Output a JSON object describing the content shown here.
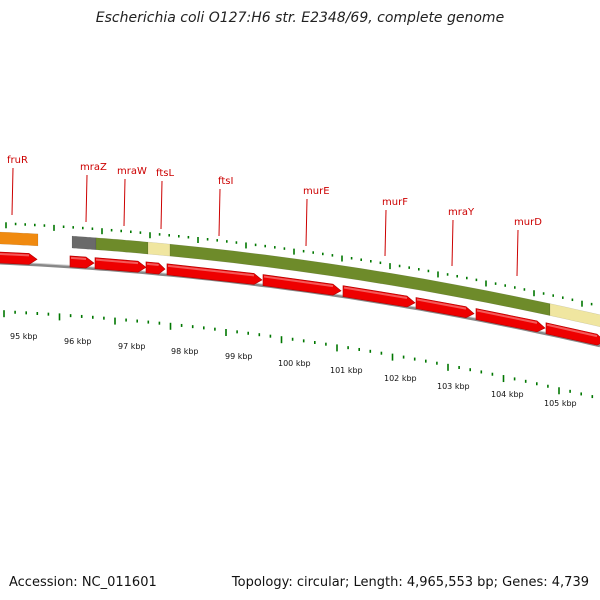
{
  "title": "Escherichia coli O127:H6 str. E2348/69, complete genome",
  "footer": {
    "accession": "Accession: NC_011601",
    "topology": "Topology: circular; Length: 4,965,553 bp; Genes: 4,739"
  },
  "colors": {
    "gene_label": "#cc0000",
    "cds_arrow": "#ee0000",
    "tick_marks": "#007700",
    "backbone": "#888888",
    "category_orange": "#f08a10",
    "category_dark_grey": "#6a6a6a",
    "category_olive": "#6e8b2a",
    "category_pale_yellow": "#f0e6a0"
  },
  "gene_labels": [
    "fruR",
    "mraZ",
    "mraW",
    "ftsL",
    "ftsI",
    "murE",
    "murF",
    "mraY",
    "murD"
  ],
  "scale_labels": [
    "95 kbp",
    "96 kbp",
    "97 kbp",
    "98 kbp",
    "99 kbp",
    "100 kbp",
    "101 kbp",
    "102 kbp",
    "103 kbp",
    "104 kbp",
    "105 kbp"
  ]
}
